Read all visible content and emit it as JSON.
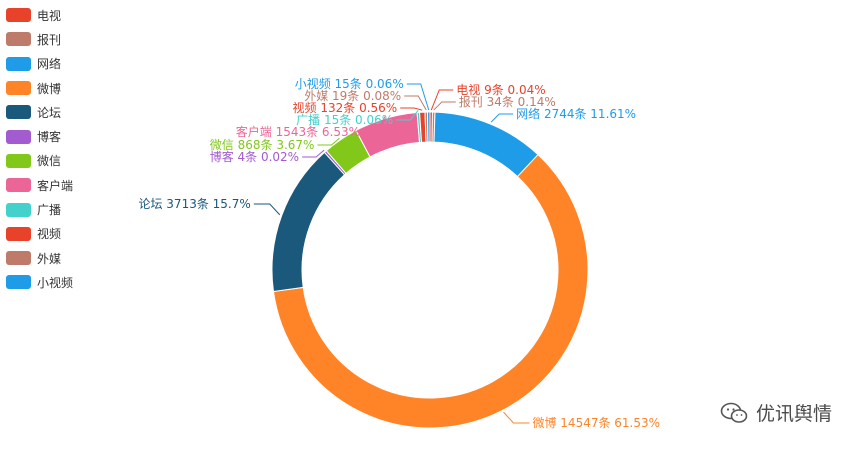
{
  "chart_data": {
    "type": "pie",
    "style": "donut",
    "slices": [
      {
        "name": "电视",
        "count": 9,
        "unit": "条",
        "percent": "0.04%",
        "color": "#E8422B"
      },
      {
        "name": "报刊",
        "count": 34,
        "unit": "条",
        "percent": "0.14%",
        "color": "#BF7B6A"
      },
      {
        "name": "网络",
        "count": 2744,
        "unit": "条",
        "percent": "11.61%",
        "color": "#1F9CE8"
      },
      {
        "name": "微博",
        "count": 14547,
        "unit": "条",
        "percent": "61.53%",
        "color": "#FF8427"
      },
      {
        "name": "论坛",
        "count": 3713,
        "unit": "条",
        "percent": "15.7%",
        "color": "#1A587C"
      },
      {
        "name": "博客",
        "count": 4,
        "unit": "条",
        "percent": "0.02%",
        "color": "#A35BD0"
      },
      {
        "name": "微信",
        "count": 868,
        "unit": "条",
        "percent": "3.67%",
        "color": "#82C81A"
      },
      {
        "name": "客户端",
        "count": 1543,
        "unit": "条",
        "percent": "6.53%",
        "color": "#EB6697"
      },
      {
        "name": "广播",
        "count": 15,
        "unit": "条",
        "percent": "0.06%",
        "color": "#43D1CC"
      },
      {
        "name": "视频",
        "count": 132,
        "unit": "条",
        "percent": "0.56%",
        "color": "#E8422B"
      },
      {
        "name": "外媒",
        "count": 19,
        "unit": "条",
        "percent": "0.08%",
        "color": "#BF7B6A"
      },
      {
        "name": "小视频",
        "count": 15,
        "unit": "条",
        "percent": "0.06%",
        "color": "#1F9CE8"
      }
    ],
    "legend_position": "top-left"
  },
  "watermark": {
    "text": "优讯舆情",
    "icon": "wechat-icon"
  }
}
